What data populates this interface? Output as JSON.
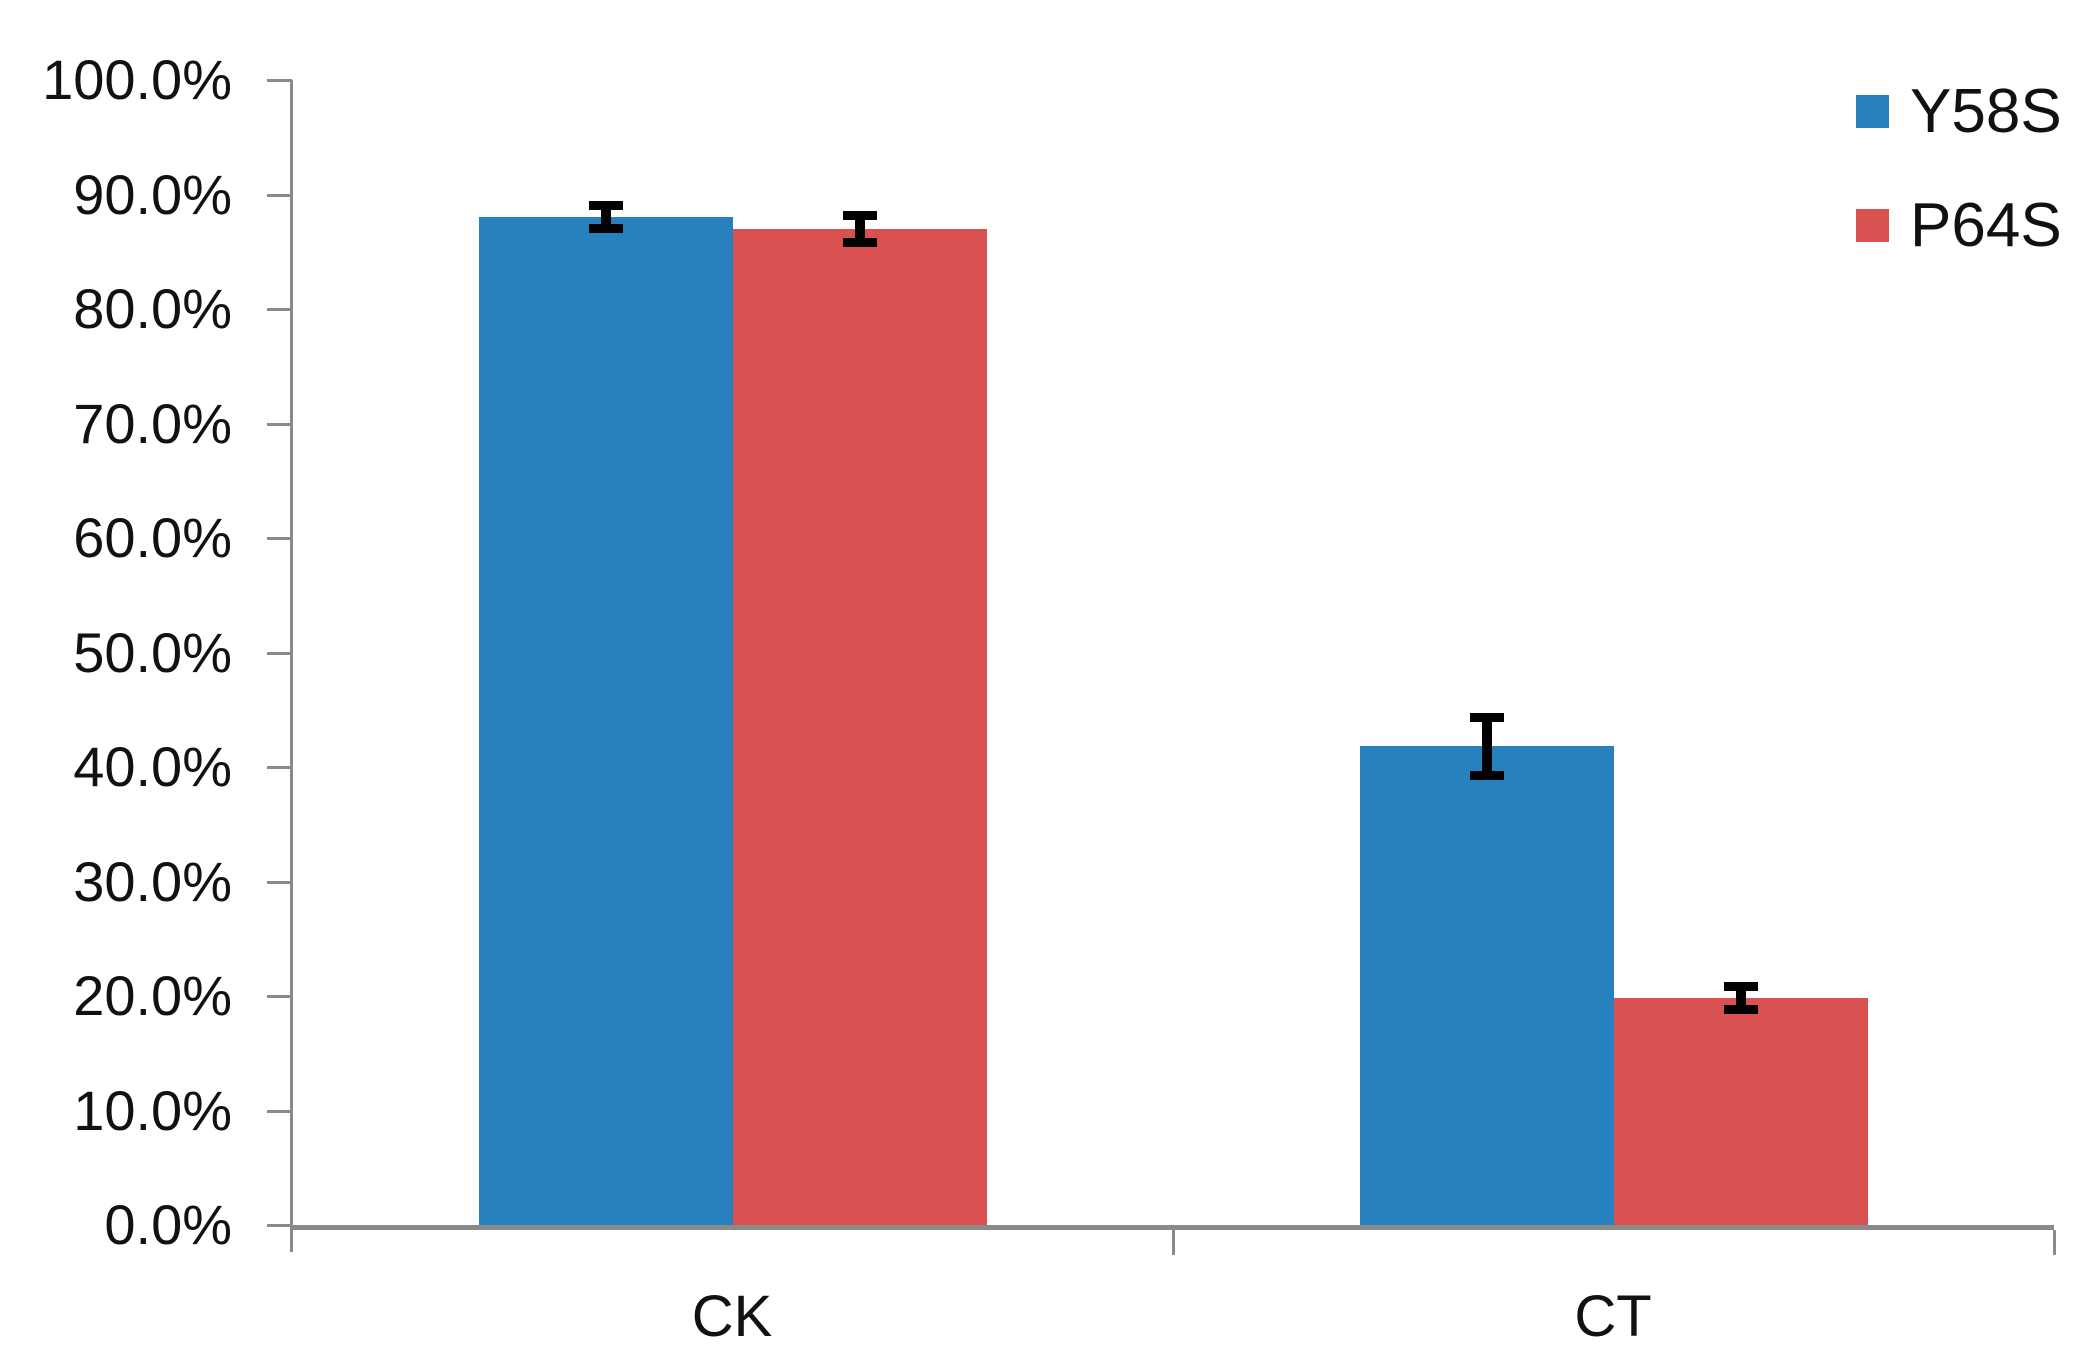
{
  "chart_data": {
    "type": "bar",
    "title": "",
    "xlabel": "",
    "ylabel": "",
    "categories": [
      "CK",
      "CT"
    ],
    "series": [
      {
        "name": "Y58S",
        "color": "#2881bf",
        "values": [
          88.0,
          41.8
        ],
        "errors": [
          1.4,
          2.9
        ]
      },
      {
        "name": "P64S",
        "color": "#d95150",
        "values": [
          87.0,
          19.8
        ],
        "errors": [
          1.6,
          1.4
        ]
      }
    ],
    "ylim": [
      0,
      100
    ],
    "yticks": [
      {
        "value": 100,
        "label": "100.0%"
      },
      {
        "value": 90,
        "label": "90.0%"
      },
      {
        "value": 80,
        "label": "80.0%"
      },
      {
        "value": 70,
        "label": "70.0%"
      },
      {
        "value": 60,
        "label": "60.0%"
      },
      {
        "value": 50,
        "label": "50.0%"
      },
      {
        "value": 40,
        "label": "40.0%"
      },
      {
        "value": 30,
        "label": "30.0%"
      },
      {
        "value": 20,
        "label": "20.0%"
      },
      {
        "value": 10,
        "label": "10.0%"
      },
      {
        "value": 0,
        "label": "0.0%"
      }
    ],
    "grid": false,
    "legend_position": "top-right",
    "error_bar_color": "#000000",
    "axis_color": "#8a8a8a",
    "background_color": "#ffffff"
  }
}
